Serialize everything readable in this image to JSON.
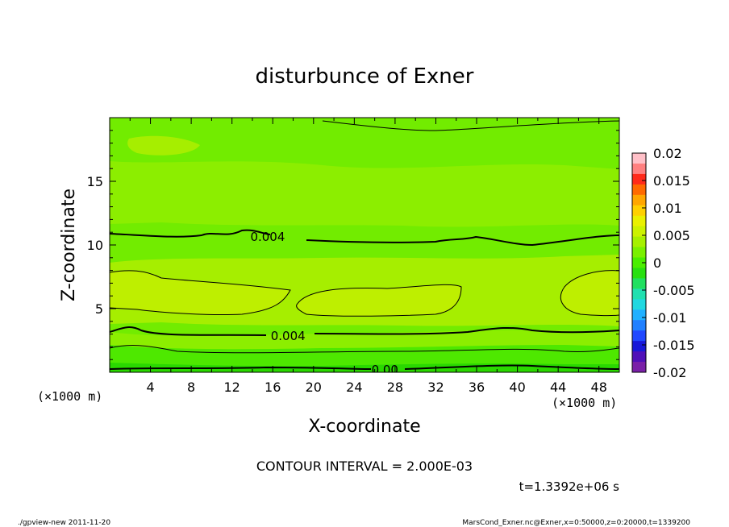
{
  "chart_data": {
    "type": "heatmap",
    "title": "disturbunce of Exner",
    "xlabel": "X-coordinate",
    "ylabel": "Z-coordinate",
    "x_unit": "(×1000 m)",
    "y_unit": "(×1000 m)",
    "xlim": [
      0,
      50
    ],
    "ylim": [
      0,
      20
    ],
    "x_ticks": [
      "4",
      "8",
      "12",
      "16",
      "20",
      "24",
      "28",
      "32",
      "36",
      "40",
      "44",
      "48"
    ],
    "y_ticks": [
      "5",
      "10",
      "15"
    ],
    "colorbar": {
      "ticks": [
        "0.02",
        "0.015",
        "0.01",
        "0.005",
        "0",
        "-0.005",
        "-0.01",
        "-0.015",
        "-0.02"
      ],
      "range": [
        -0.02,
        0.02
      ],
      "colors": [
        "#ffc0c8",
        "#ff8080",
        "#ff2a1a",
        "#ff6a00",
        "#ffa600",
        "#ffd000",
        "#eaf000",
        "#ccf200",
        "#a6f000",
        "#7af000",
        "#4aee00",
        "#28e010",
        "#20e060",
        "#20e0b0",
        "#20d8e0",
        "#20b0ff",
        "#2080ff",
        "#2048ff",
        "#1818d8",
        "#5010b8",
        "#7a20a8"
      ]
    },
    "field_colors": {
      "max_band": "#d7f400",
      "upper_band": "#beef00",
      "mid_band": "#a6ee00",
      "low_band": "#8cee00",
      "base": "#72ec00",
      "lower_base": "#4ee800",
      "bottom": "#2ad800"
    },
    "contour_labels": [
      {
        "text": "0.004",
        "x": 15.5,
        "z": 10.7
      },
      {
        "text": "0.004",
        "x": 17.5,
        "z": 2.9
      },
      {
        "text": "0.00",
        "x": 27,
        "z": 0.25
      }
    ],
    "contour_interval_text": "CONTOUR INTERVAL = 2.000E-03",
    "time_text": "t=1.3392e+06 s"
  },
  "footer": {
    "left": "./gpview-new  2011-11-20",
    "right": "MarsCond_Exner.nc@Exner,x=0:50000,z=0:20000,t=1339200"
  }
}
